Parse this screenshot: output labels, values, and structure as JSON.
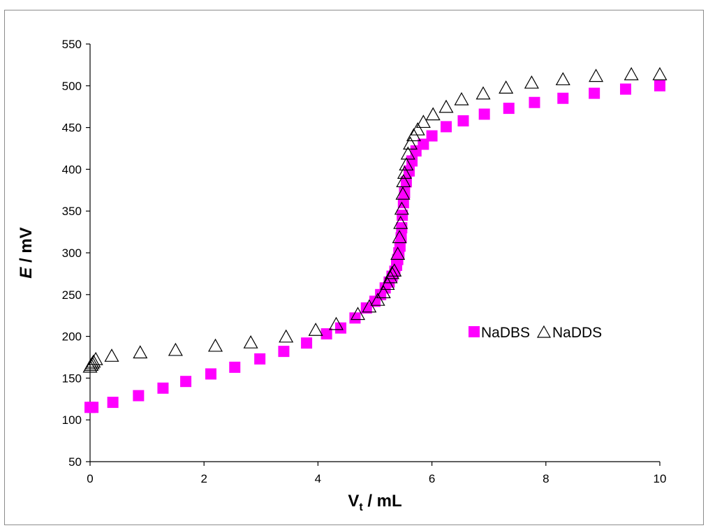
{
  "chart_data": {
    "type": "scatter",
    "xlabel": "V",
    "xlabel_sub": "t",
    "xlabel_unit": " / mL",
    "ylabel_italic": "E",
    "ylabel_unit": " / mV",
    "xlim": [
      0,
      10
    ],
    "ylim": [
      50,
      550
    ],
    "xticks": [
      0,
      2,
      4,
      6,
      8,
      10
    ],
    "yticks": [
      50,
      100,
      150,
      200,
      250,
      300,
      350,
      400,
      450,
      500,
      550
    ],
    "grid": false,
    "legend_position": "right-center",
    "series": [
      {
        "name": "NaDBS",
        "marker": "square",
        "color": "#ff00ff",
        "x": [
          0.0,
          0.05,
          0.4,
          0.85,
          1.28,
          1.68,
          2.12,
          2.54,
          2.98,
          3.4,
          3.8,
          4.15,
          4.4,
          4.65,
          4.85,
          5.0,
          5.1,
          5.18,
          5.25,
          5.3,
          5.35,
          5.38,
          5.4,
          5.42,
          5.44,
          5.46,
          5.47,
          5.48,
          5.5,
          5.52,
          5.55,
          5.6,
          5.65,
          5.72,
          5.85,
          6.0,
          6.25,
          6.55,
          6.92,
          7.35,
          7.8,
          8.3,
          8.85,
          9.4,
          10.0
        ],
        "y": [
          115,
          115,
          121,
          129,
          138,
          146,
          155,
          163,
          173,
          182,
          192,
          203,
          210,
          222,
          234,
          242,
          250,
          258,
          265,
          272,
          278,
          285,
          292,
          300,
          308,
          318,
          330,
          345,
          360,
          372,
          385,
          398,
          410,
          422,
          430,
          440,
          451,
          458,
          466,
          473,
          480,
          485,
          491,
          496,
          500
        ]
      },
      {
        "name": "NaDDS",
        "marker": "triangle",
        "color": "#000000",
        "x": [
          0.0,
          0.02,
          0.04,
          0.06,
          0.1,
          0.38,
          0.88,
          1.5,
          2.2,
          2.82,
          3.44,
          3.96,
          4.32,
          4.7,
          4.9,
          5.05,
          5.15,
          5.22,
          5.27,
          5.3,
          5.34,
          5.4,
          5.43,
          5.45,
          5.47,
          5.49,
          5.5,
          5.52,
          5.55,
          5.58,
          5.62,
          5.68,
          5.75,
          5.85,
          6.02,
          6.25,
          6.52,
          6.9,
          7.3,
          7.75,
          8.3,
          8.88,
          9.5,
          10.0
        ],
        "y": [
          163,
          165,
          167,
          169,
          172,
          176,
          180,
          183,
          188,
          192,
          199,
          207,
          214,
          226,
          235,
          243,
          252,
          262,
          270,
          275,
          278,
          298,
          318,
          335,
          352,
          370,
          385,
          395,
          405,
          418,
          430,
          440,
          447,
          456,
          465,
          474,
          483,
          490,
          497,
          503,
          507,
          511,
          513,
          513
        ]
      }
    ]
  }
}
